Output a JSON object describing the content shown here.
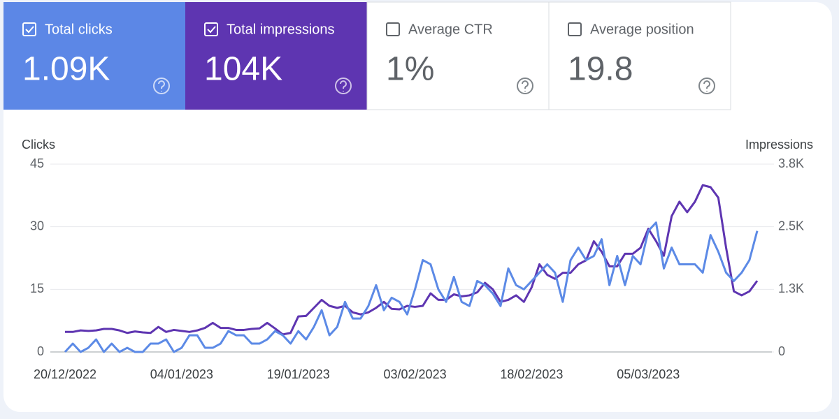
{
  "metrics": [
    {
      "label": "Total clicks",
      "value": "1.09K",
      "checked": true,
      "color": "#5c87e6"
    },
    {
      "label": "Total impressions",
      "value": "104K",
      "checked": true,
      "color": "#5e35b1"
    },
    {
      "label": "Average CTR",
      "value": "1%",
      "checked": false
    },
    {
      "label": "Average position",
      "value": "19.8",
      "checked": false
    }
  ],
  "chart_data": {
    "type": "line",
    "y_label": "Clicks",
    "y2_label": "Impressions",
    "categories": [
      "20/12/2022",
      null,
      null,
      null,
      null,
      null,
      null,
      null,
      null,
      null,
      null,
      null,
      null,
      null,
      null,
      "04/01/2023",
      null,
      null,
      null,
      null,
      null,
      null,
      null,
      null,
      null,
      null,
      null,
      null,
      null,
      null,
      "19/01/2023",
      null,
      null,
      null,
      null,
      null,
      null,
      null,
      null,
      null,
      null,
      null,
      null,
      null,
      null,
      "03/02/2023",
      null,
      null,
      null,
      null,
      null,
      null,
      null,
      null,
      null,
      null,
      null,
      null,
      null,
      null,
      "18/02/2023",
      null,
      null,
      null,
      null,
      null,
      null,
      null,
      null,
      null,
      null,
      null,
      null,
      null,
      null,
      "05/03/2023",
      null,
      null,
      null,
      null,
      null,
      null,
      null,
      null,
      null,
      null,
      null,
      null,
      null,
      null
    ],
    "series": [
      {
        "color": "#5e35b1",
        "axis": "y2",
        "values": [
          400,
          400,
          430,
          420,
          430,
          460,
          460,
          430,
          380,
          410,
          390,
          380,
          500,
          400,
          440,
          420,
          400,
          430,
          480,
          580,
          480,
          480,
          440,
          440,
          460,
          470,
          580,
          470,
          350,
          380,
          710,
          720,
          880,
          1040,
          920,
          880,
          920,
          790,
          750,
          790,
          880,
          1000,
          860,
          850,
          920,
          900,
          920,
          1170,
          1040,
          1040,
          1150,
          1110,
          1130,
          1190,
          1380,
          1250,
          1000,
          1040,
          1130,
          1000,
          1290,
          1750,
          1540,
          1460,
          1580,
          1580,
          1750,
          1830,
          2210,
          2000,
          1710,
          1710,
          1960,
          1960,
          2080,
          2460,
          2210,
          1920,
          2710,
          3000,
          2790,
          3000,
          3330,
          3290,
          3080,
          2080,
          1210,
          1130,
          1210,
          1420
        ]
      },
      {
        "color": "#5c8ae6",
        "axis": "y",
        "values": [
          0,
          2,
          0,
          1,
          3,
          0,
          2,
          0,
          1,
          0,
          0,
          2,
          2,
          3,
          0,
          1,
          4,
          4,
          1,
          1,
          2,
          5,
          4,
          4,
          2,
          2,
          3,
          5,
          4,
          2,
          5,
          3,
          6,
          10,
          4,
          6,
          12,
          8,
          8,
          11,
          16,
          10,
          13,
          12,
          9,
          15,
          22,
          21,
          15,
          12,
          18,
          12,
          11,
          17,
          16,
          14,
          11,
          20,
          16,
          15,
          17,
          19,
          21,
          19,
          12,
          22,
          25,
          22,
          23,
          27,
          16,
          23,
          16,
          23,
          21,
          29,
          31,
          20,
          25,
          21,
          21,
          21,
          19,
          28,
          24,
          19,
          17,
          19,
          22,
          29
        ]
      }
    ],
    "ylim": [
      0,
      45
    ],
    "yticks": [
      0,
      15,
      30,
      45
    ],
    "y2lim": [
      0,
      3750
    ],
    "y2ticks": [
      0,
      {
        "value": 1250,
        "label": "1.3K"
      },
      {
        "value": 2500,
        "label": "2.5K"
      },
      {
        "value": 3750,
        "label": "3.8K"
      }
    ],
    "grid": true
  }
}
